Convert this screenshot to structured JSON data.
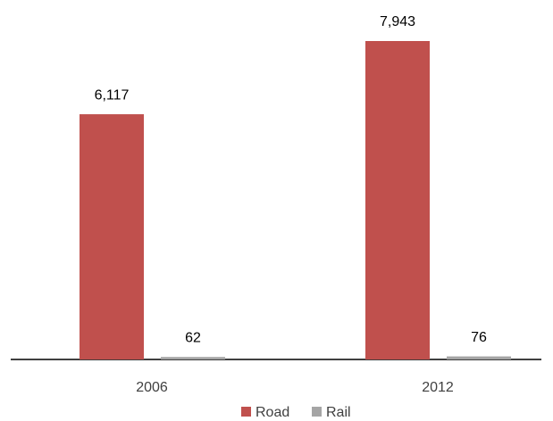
{
  "chart_data": {
    "type": "bar",
    "categories": [
      "2006",
      "2012"
    ],
    "series": [
      {
        "name": "Road",
        "color": "#c0504d",
        "values": [
          6117,
          7943
        ],
        "value_labels": [
          "6,117",
          "7,943"
        ]
      },
      {
        "name": "Rail",
        "color": "#a5a5a5",
        "values": [
          62,
          76
        ]
      }
    ]
  }
}
